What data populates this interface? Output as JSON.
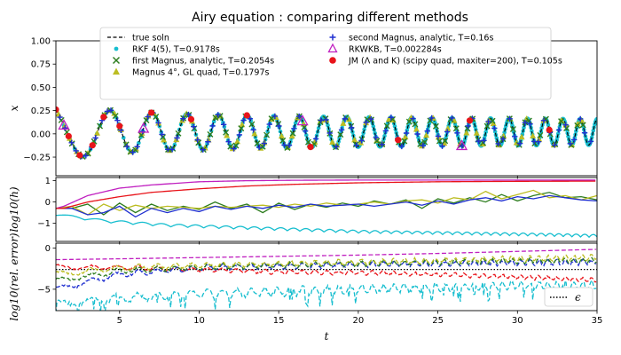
{
  "chart_data": [
    {
      "type": "line",
      "panel": "solution",
      "title": "Airy equation : comparing different methods",
      "xlabel": "",
      "ylabel": "x",
      "xlim": [
        1,
        35
      ],
      "ylim": [
        -0.45,
        1.0
      ],
      "yticks": [
        "1.00",
        "0.75",
        "0.50",
        "0.25",
        "0.00",
        "−0.25"
      ],
      "ytick_values": [
        1.0,
        0.75,
        0.5,
        0.25,
        0.0,
        -0.25
      ],
      "legend": {
        "placement": "top",
        "entries": [
          {
            "label": "true soln",
            "marker": "dashed-line",
            "color": "#000000"
          },
          {
            "label": "RKF 4(5), T=0.9178s",
            "marker": "dot",
            "color": "#17becf"
          },
          {
            "label": "first Magnus, analytic, T=0.2054s",
            "marker": "x",
            "color": "#2e7d1f"
          },
          {
            "label": "Magnus 4°, GL quad, T=0.1797s",
            "marker": "triangle-filled",
            "color": "#bcbd22"
          },
          {
            "label": "second Magnus, analytic, T=0.16s",
            "marker": "plus",
            "color": "#1f2fd0"
          },
          {
            "label": "RKWKB, T=0.002284s",
            "marker": "triangle-open",
            "color": "#c020c0"
          },
          {
            "label": "JM (Λ and K) (scipy quad, maxiter=200), T=0.105s",
            "marker": "dot-large",
            "color": "#e8141a"
          }
        ]
      },
      "series": [
        {
          "name": "true soln",
          "kind": "airy-solution",
          "color": "#000000"
        },
        {
          "name": "RKF 4(5), T=0.9178s",
          "kind": "dense-dots",
          "color": "#17becf"
        },
        {
          "name": "first Magnus, analytic, T=0.2054s",
          "kind": "x-markers",
          "color": "#2e7d1f"
        },
        {
          "name": "Magnus 4°, GL quad, T=0.1797s",
          "kind": "triangle-markers",
          "color": "#bcbd22"
        },
        {
          "name": "second Magnus, analytic, T=0.16s",
          "kind": "plus-markers",
          "color": "#1f2fd0"
        },
        {
          "name": "RKWKB, T=0.002284s",
          "kind": "open-triangles",
          "color": "#c020c0",
          "x": [
            1.5,
            6.5,
            16.5,
            26.5
          ]
        },
        {
          "name": "JM (Λ and K) (scipy quad, maxiter=200), T=0.105s",
          "kind": "large-dots",
          "color": "#e8141a",
          "x": [
            1.0,
            1.8,
            2.5,
            3.3,
            4.0,
            5.0,
            7.0,
            9.5,
            13.0,
            17.0,
            22.5,
            27.0,
            32.0
          ]
        }
      ]
    },
    {
      "type": "line",
      "panel": "step-size",
      "xlabel": "",
      "ylabel": "log10(h)",
      "xlim": [
        1,
        35
      ],
      "ylim": [
        -1.85,
        1.15
      ],
      "yticks": [
        "1",
        "0",
        "−1"
      ],
      "ytick_values": [
        1,
        0,
        -1
      ],
      "series": [
        {
          "name": "RKF 4(5)",
          "color": "#17becf",
          "kind": "oscillating-decay",
          "x": [
            1,
            2,
            4,
            8,
            12,
            16,
            20,
            24,
            28,
            32,
            35
          ],
          "y": [
            -0.65,
            -0.7,
            -0.9,
            -1.1,
            -1.2,
            -1.3,
            -1.4,
            -1.45,
            -1.5,
            -1.55,
            -1.6
          ]
        },
        {
          "name": "first Magnus",
          "color": "#2e7d1f",
          "kind": "zigzag",
          "x": [
            1,
            2,
            3,
            4,
            5,
            6,
            7,
            8,
            9,
            10,
            11,
            12,
            13,
            14,
            15,
            16,
            17,
            18,
            19,
            20,
            21,
            22,
            23,
            24,
            25,
            26,
            27,
            28,
            29,
            30,
            31,
            32,
            33,
            34,
            35
          ],
          "y": [
            -0.3,
            -0.3,
            -0.1,
            -0.6,
            -0.05,
            -0.5,
            -0.1,
            -0.4,
            -0.2,
            -0.35,
            0.0,
            -0.3,
            -0.1,
            -0.5,
            -0.05,
            -0.35,
            -0.1,
            -0.25,
            -0.05,
            -0.2,
            0.05,
            -0.1,
            0.1,
            -0.3,
            0.15,
            -0.05,
            0.2,
            0.0,
            0.35,
            0.05,
            0.3,
            0.45,
            0.2,
            0.25,
            0.1
          ]
        },
        {
          "name": "Magnus 4°, GL quad",
          "color": "#bcbd22",
          "kind": "zigzag",
          "x": [
            1,
            2,
            3,
            4,
            5,
            6,
            7,
            8,
            9,
            10,
            11,
            12,
            13,
            14,
            15,
            16,
            17,
            18,
            19,
            20,
            21,
            22,
            23,
            24,
            25,
            26,
            27,
            28,
            29,
            30,
            31,
            32,
            33,
            34,
            35
          ],
          "y": [
            -0.3,
            -0.2,
            -0.6,
            -0.1,
            -0.4,
            -0.15,
            -0.3,
            -0.2,
            -0.25,
            -0.3,
            -0.2,
            -0.25,
            -0.2,
            -0.15,
            -0.25,
            -0.1,
            -0.2,
            -0.05,
            -0.15,
            -0.1,
            0.0,
            -0.1,
            0.05,
            0.1,
            -0.05,
            0.2,
            0.1,
            0.5,
            0.15,
            0.35,
            0.55,
            0.2,
            0.3,
            0.1,
            0.3
          ]
        },
        {
          "name": "second Magnus",
          "color": "#1f2fd0",
          "kind": "zigzag",
          "x": [
            1,
            2,
            3,
            4,
            5,
            6,
            7,
            8,
            9,
            10,
            11,
            12,
            13,
            14,
            15,
            16,
            17,
            18,
            19,
            20,
            21,
            22,
            23,
            24,
            25,
            26,
            27,
            28,
            29,
            30,
            31,
            32,
            33,
            34,
            35
          ],
          "y": [
            -0.3,
            -0.3,
            -0.6,
            -0.5,
            -0.2,
            -0.7,
            -0.3,
            -0.5,
            -0.3,
            -0.45,
            -0.2,
            -0.35,
            -0.2,
            -0.3,
            -0.15,
            -0.25,
            -0.1,
            -0.2,
            -0.15,
            -0.1,
            -0.2,
            -0.1,
            0.0,
            -0.15,
            0.05,
            -0.1,
            0.1,
            0.2,
            0.05,
            0.25,
            0.15,
            0.3,
            0.2,
            0.1,
            0.05
          ]
        },
        {
          "name": "RKWKB",
          "color": "#c020c0",
          "kind": "smooth",
          "x": [
            1,
            1.5,
            3,
            5,
            7,
            10,
            13,
            16,
            20,
            25,
            30,
            35
          ],
          "y": [
            -0.3,
            -0.2,
            0.3,
            0.65,
            0.8,
            0.95,
            1.0,
            1.02,
            1.03,
            1.03,
            1.03,
            1.03
          ]
        },
        {
          "name": "JM",
          "color": "#e8141a",
          "kind": "smooth",
          "x": [
            1,
            1.5,
            3,
            5,
            7,
            10,
            13,
            16,
            20,
            25,
            30,
            35
          ],
          "y": [
            -0.3,
            -0.3,
            0.0,
            0.25,
            0.45,
            0.62,
            0.75,
            0.83,
            0.9,
            0.95,
            0.97,
            0.98
          ]
        }
      ]
    },
    {
      "type": "line",
      "panel": "relative-error",
      "xlabel": "t",
      "ylabel": "log10(rel. error)",
      "xlim": [
        1,
        35
      ],
      "ylim": [
        -7.6,
        0.6
      ],
      "yticks": [
        "0",
        "−5"
      ],
      "ytick_values": [
        0,
        -5
      ],
      "xticks": [
        "5",
        "10",
        "15",
        "20",
        "25",
        "30",
        "35"
      ],
      "xtick_values": [
        5,
        10,
        15,
        20,
        25,
        30,
        35
      ],
      "legend": {
        "placement": "bottom-right",
        "entries": [
          {
            "label": "ϵ",
            "marker": "dotted-line",
            "color": "#000000"
          }
        ]
      },
      "epsilon": -2.6,
      "series": [
        {
          "name": "RKWKB",
          "color": "#c020c0",
          "kind": "dashed",
          "x": [
            1,
            5,
            10,
            15,
            20,
            25,
            30,
            35
          ],
          "y": [
            -1.4,
            -1.3,
            -1.15,
            -1.0,
            -0.85,
            -0.65,
            -0.4,
            -0.15
          ]
        },
        {
          "name": "JM",
          "color": "#e8141a",
          "kind": "dashed-noisy",
          "x": [
            1,
            5,
            10,
            15,
            20,
            25,
            30,
            35
          ],
          "y": [
            -2.3,
            -2.4,
            -2.6,
            -2.9,
            -3.0,
            -3.2,
            -3.5,
            -3.9
          ]
        },
        {
          "name": "RKF 4(5)",
          "color": "#17becf",
          "kind": "dashed-noisy",
          "x": [
            1,
            5,
            10,
            15,
            20,
            25,
            30,
            35
          ],
          "y": [
            -6.5,
            -5.8,
            -5.3,
            -5.0,
            -4.7,
            -4.5,
            -4.3,
            -4.2
          ]
        },
        {
          "name": "second Magnus",
          "color": "#1f2fd0",
          "kind": "dashed-noisy",
          "x": [
            1,
            5,
            10,
            15,
            20,
            25,
            30,
            35
          ],
          "y": [
            -5.0,
            -3.2,
            -2.4,
            -2.2,
            -2.0,
            -1.9,
            -1.8,
            -1.7
          ]
        },
        {
          "name": "first Magnus",
          "color": "#2e7d1f",
          "kind": "dashed-noisy",
          "x": [
            1,
            5,
            10,
            15,
            20,
            25,
            30,
            35
          ],
          "y": [
            -4.0,
            -2.8,
            -2.3,
            -2.1,
            -1.9,
            -1.7,
            -1.6,
            -1.5
          ]
        },
        {
          "name": "Magnus 4°",
          "color": "#bcbd22",
          "kind": "dashed-noisy",
          "x": [
            1,
            5,
            10,
            15,
            20,
            25,
            30,
            35
          ],
          "y": [
            -3.2,
            -2.4,
            -2.1,
            -1.9,
            -1.7,
            -1.5,
            -1.3,
            -1.1
          ]
        }
      ]
    }
  ]
}
